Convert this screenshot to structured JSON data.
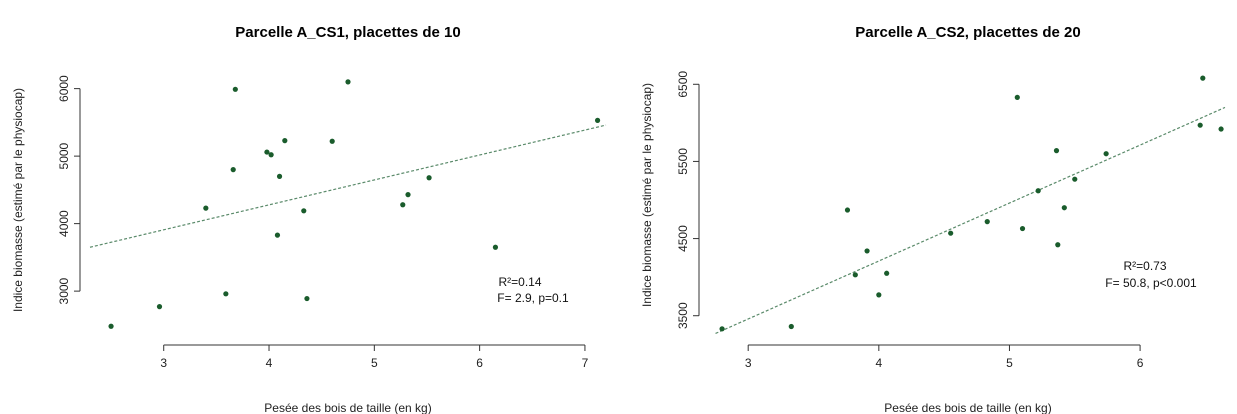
{
  "colors": {
    "point": "#1a5c2c",
    "regression": "#5a8a6a",
    "axis": "#333333"
  },
  "chart_data": [
    {
      "type": "scatter",
      "title": "Parcelle A_CS1, placettes de 10",
      "xlabel": "Pesée des bois de taille (en kg)",
      "ylabel": "Indice biomasse (estimé par le physiocap)",
      "xlim": [
        2.3,
        7.2
      ],
      "ylim": [
        2350,
        6350
      ],
      "xticks": [
        3,
        4,
        5,
        6,
        7
      ],
      "yticks": [
        3000,
        4000,
        5000,
        6000
      ],
      "grid": false,
      "points": [
        {
          "x": 2.5,
          "y": 2480
        },
        {
          "x": 2.96,
          "y": 2770
        },
        {
          "x": 3.4,
          "y": 4230
        },
        {
          "x": 3.59,
          "y": 2960
        },
        {
          "x": 3.66,
          "y": 4800
        },
        {
          "x": 3.68,
          "y": 5990
        },
        {
          "x": 3.98,
          "y": 5060
        },
        {
          "x": 4.02,
          "y": 5020
        },
        {
          "x": 4.08,
          "y": 3830
        },
        {
          "x": 4.1,
          "y": 4700
        },
        {
          "x": 4.15,
          "y": 5230
        },
        {
          "x": 4.33,
          "y": 4190
        },
        {
          "x": 4.36,
          "y": 2890
        },
        {
          "x": 4.6,
          "y": 5220
        },
        {
          "x": 4.75,
          "y": 6100
        },
        {
          "x": 5.27,
          "y": 4280
        },
        {
          "x": 5.32,
          "y": 4430
        },
        {
          "x": 5.52,
          "y": 4680
        },
        {
          "x": 6.15,
          "y": 3650
        },
        {
          "x": 7.12,
          "y": 5530
        }
      ],
      "regression": {
        "x1": 2.3,
        "y1": 3650,
        "x2": 7.2,
        "y2": 5460
      },
      "annotations": [
        "R²=0.14",
        "F= 2.9,  p=0.1"
      ]
    },
    {
      "type": "scatter",
      "title": "Parcelle A_CS2, placettes de 20",
      "xlabel": "Pesée des bois de taille (en kg)",
      "ylabel": "Indice biomasse (estimé par le physiocap)",
      "xlim": [
        2.7,
        6.65
      ],
      "ylim": [
        3250,
        6750
      ],
      "xticks": [
        3,
        4,
        5,
        6
      ],
      "yticks": [
        3500,
        4500,
        5500,
        6500
      ],
      "grid": false,
      "points": [
        {
          "x": 2.8,
          "y": 3330
        },
        {
          "x": 3.33,
          "y": 3360
        },
        {
          "x": 3.76,
          "y": 4870
        },
        {
          "x": 3.82,
          "y": 4030
        },
        {
          "x": 3.91,
          "y": 4340
        },
        {
          "x": 4.0,
          "y": 3770
        },
        {
          "x": 4.06,
          "y": 4050
        },
        {
          "x": 4.55,
          "y": 4570
        },
        {
          "x": 4.83,
          "y": 4720
        },
        {
          "x": 5.06,
          "y": 6330
        },
        {
          "x": 5.1,
          "y": 4630
        },
        {
          "x": 5.22,
          "y": 5120
        },
        {
          "x": 5.36,
          "y": 5640
        },
        {
          "x": 5.37,
          "y": 4420
        },
        {
          "x": 5.42,
          "y": 4900
        },
        {
          "x": 5.5,
          "y": 5270
        },
        {
          "x": 5.74,
          "y": 5600
        },
        {
          "x": 6.46,
          "y": 5970
        },
        {
          "x": 6.48,
          "y": 6580
        },
        {
          "x": 6.62,
          "y": 5920
        }
      ],
      "regression": {
        "x1": 2.75,
        "y1": 3270,
        "x2": 6.65,
        "y2": 6200
      },
      "annotations": [
        "R²=0.73",
        "F= 50.8,  p<0.001"
      ]
    }
  ]
}
